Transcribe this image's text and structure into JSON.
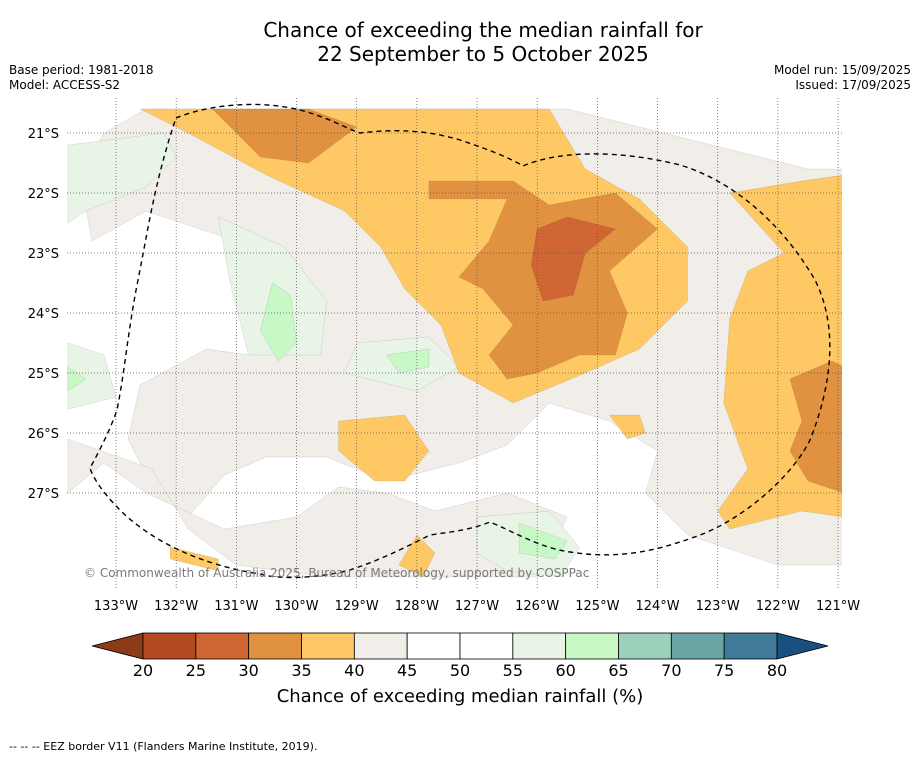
{
  "header": {
    "title_line1": "Chance of exceeding the median rainfall for",
    "title_line2": "22 September to 5 October 2025",
    "base_period": "Base period: 1981-2018",
    "model": "Model: ACCESS-S2",
    "model_run": "Model run: 15/09/2025",
    "issued": "Issued: 17/09/2025"
  },
  "copyright": "© Commonwealth of Australia 2025, Bureau of Meteorology, supported by COSPPac",
  "footer_note": "--  --  -- EEZ border V11 (Flanders Marine Institute, 2019).",
  "chart_data": {
    "type": "heatmap",
    "title": "Chance of exceeding the median rainfall for 22 September to 5 October 2025",
    "x_ticks": [
      "133°W",
      "132°W",
      "131°W",
      "130°W",
      "129°W",
      "128°W",
      "127°W",
      "126°W",
      "125°W",
      "124°W",
      "123°W",
      "122°W",
      "121°W"
    ],
    "y_ticks": [
      "21°S",
      "22°S",
      "23°S",
      "24°S",
      "25°S",
      "26°S",
      "27°S"
    ],
    "x_range": [
      -133.8,
      -120.9
    ],
    "y_range": [
      -28.4,
      -20.6
    ],
    "grid": true,
    "colorbar": {
      "label": "Chance of exceeding median rainfall (%)",
      "ticks": [
        "20",
        "25",
        "30",
        "35",
        "40",
        "45",
        "50",
        "55",
        "60",
        "65",
        "70",
        "75",
        "80"
      ],
      "colors": [
        "#8c3a1a",
        "#b34a22",
        "#cf6633",
        "#e09240",
        "#fec965",
        "#f1ede8",
        "#ffffff",
        "#ffffff",
        "#e8f4e6",
        "#c8f8c6",
        "#9dd0ba",
        "#6aa5a5",
        "#3f7b98",
        "#1a5080"
      ]
    },
    "regions": [
      {
        "category": "40-45",
        "color": "#f1ede8",
        "points": [
          [
            -132.5,
            -20.6
          ],
          [
            -125.5,
            -20.6
          ],
          [
            -123.5,
            -21.1
          ],
          [
            -121.5,
            -21.6
          ],
          [
            -120.9,
            -21.6
          ],
          [
            -120.9,
            -28.2
          ],
          [
            -122.0,
            -28.2
          ],
          [
            -123.5,
            -27.7
          ],
          [
            -124.2,
            -27.0
          ],
          [
            -124.0,
            -26.3
          ],
          [
            -124.8,
            -25.8
          ],
          [
            -125.8,
            -25.5
          ],
          [
            -126.5,
            -26.2
          ],
          [
            -127.3,
            -26.5
          ],
          [
            -128.5,
            -26.8
          ],
          [
            -129.5,
            -26.4
          ],
          [
            -130.5,
            -26.4
          ],
          [
            -131.2,
            -26.7
          ],
          [
            -131.8,
            -27.4
          ],
          [
            -132.4,
            -26.9
          ],
          [
            -132.8,
            -26.1
          ],
          [
            -132.6,
            -25.2
          ],
          [
            -131.5,
            -24.6
          ],
          [
            -130.8,
            -24.7
          ],
          [
            -130.5,
            -23.7
          ],
          [
            -131.0,
            -22.8
          ],
          [
            -132.5,
            -22.3
          ],
          [
            -133.4,
            -22.8
          ],
          [
            -133.6,
            -21.7
          ],
          [
            -133.2,
            -21.0
          ]
        ]
      },
      {
        "category": "40-45",
        "color": "#f1ede8",
        "points": [
          [
            -133.8,
            -26.1
          ],
          [
            -132.4,
            -26.6
          ],
          [
            -131.8,
            -27.6
          ],
          [
            -131.0,
            -28.2
          ],
          [
            -129.5,
            -28.4
          ],
          [
            -126.0,
            -28.4
          ],
          [
            -125.5,
            -27.4
          ],
          [
            -126.5,
            -27.0
          ],
          [
            -127.7,
            -27.3
          ],
          [
            -128.5,
            -27.0
          ],
          [
            -129.3,
            -26.9
          ],
          [
            -130.0,
            -27.4
          ],
          [
            -131.2,
            -27.6
          ],
          [
            -132.5,
            -27.0
          ],
          [
            -133.2,
            -26.5
          ],
          [
            -133.8,
            -27.0
          ]
        ]
      },
      {
        "category": "55-60",
        "color": "#e8f4e6",
        "points": [
          [
            -133.8,
            -21.2
          ],
          [
            -132.2,
            -21.0
          ],
          [
            -132.0,
            -21.4
          ],
          [
            -132.5,
            -21.9
          ],
          [
            -133.5,
            -22.3
          ],
          [
            -133.8,
            -22.5
          ]
        ]
      },
      {
        "category": "55-60",
        "color": "#e8f4e6",
        "points": [
          [
            -133.8,
            -24.5
          ],
          [
            -133.2,
            -24.7
          ],
          [
            -133.0,
            -25.4
          ],
          [
            -133.8,
            -25.6
          ]
        ]
      },
      {
        "category": "55-60",
        "color": "#e8f4e6",
        "points": [
          [
            -131.3,
            -22.4
          ],
          [
            -130.2,
            -22.9
          ],
          [
            -129.5,
            -23.8
          ],
          [
            -129.6,
            -24.7
          ],
          [
            -130.8,
            -24.7
          ],
          [
            -131.1,
            -23.5
          ]
        ]
      },
      {
        "category": "55-60",
        "color": "#e8f4e6",
        "points": [
          [
            -129.0,
            -24.5
          ],
          [
            -127.8,
            -24.4
          ],
          [
            -127.3,
            -24.9
          ],
          [
            -128.0,
            -25.3
          ],
          [
            -129.2,
            -25.0
          ]
        ]
      },
      {
        "category": "55-60",
        "color": "#e8f4e6",
        "points": [
          [
            -127.0,
            -27.4
          ],
          [
            -125.8,
            -27.3
          ],
          [
            -125.3,
            -27.9
          ],
          [
            -125.6,
            -28.4
          ],
          [
            -126.5,
            -28.3
          ],
          [
            -127.0,
            -28.0
          ]
        ]
      },
      {
        "category": "60-65",
        "color": "#c8f8c6",
        "points": [
          [
            -130.4,
            -23.5
          ],
          [
            -130.1,
            -23.7
          ],
          [
            -130.0,
            -24.5
          ],
          [
            -130.3,
            -24.8
          ],
          [
            -130.6,
            -24.3
          ]
        ]
      },
      {
        "category": "60-65",
        "color": "#c8f8c6",
        "points": [
          [
            -128.5,
            -24.7
          ],
          [
            -127.8,
            -24.6
          ],
          [
            -127.8,
            -24.9
          ],
          [
            -128.3,
            -25.0
          ]
        ]
      },
      {
        "category": "60-65",
        "color": "#c8f8c6",
        "points": [
          [
            -133.8,
            -24.9
          ],
          [
            -133.5,
            -25.1
          ],
          [
            -133.8,
            -25.3
          ]
        ]
      },
      {
        "category": "60-65",
        "color": "#c8f8c6",
        "points": [
          [
            -126.3,
            -27.5
          ],
          [
            -125.5,
            -27.8
          ],
          [
            -125.7,
            -28.1
          ],
          [
            -126.3,
            -28.0
          ]
        ]
      },
      {
        "category": "35-40",
        "color": "#fec965",
        "points": [
          [
            -132.6,
            -20.6
          ],
          [
            -125.8,
            -20.6
          ],
          [
            -125.2,
            -21.6
          ],
          [
            -124.3,
            -22.1
          ],
          [
            -123.5,
            -22.9
          ],
          [
            -123.5,
            -23.8
          ],
          [
            -124.3,
            -24.6
          ],
          [
            -125.2,
            -25.0
          ],
          [
            -126.4,
            -25.5
          ],
          [
            -127.3,
            -25.0
          ],
          [
            -127.6,
            -24.2
          ],
          [
            -128.2,
            -23.6
          ],
          [
            -128.6,
            -22.9
          ],
          [
            -129.2,
            -22.3
          ],
          [
            -130.5,
            -21.7
          ],
          [
            -131.8,
            -21.0
          ]
        ]
      },
      {
        "category": "35-40",
        "color": "#fec965",
        "points": [
          [
            -122.8,
            -22.0
          ],
          [
            -121.6,
            -21.8
          ],
          [
            -120.9,
            -21.7
          ],
          [
            -120.9,
            -27.4
          ],
          [
            -121.6,
            -27.3
          ],
          [
            -122.8,
            -27.6
          ],
          [
            -123.0,
            -27.3
          ],
          [
            -122.5,
            -26.6
          ],
          [
            -122.9,
            -25.5
          ],
          [
            -122.8,
            -24.1
          ],
          [
            -122.5,
            -23.3
          ],
          [
            -121.9,
            -23.0
          ]
        ]
      },
      {
        "category": "35-40",
        "color": "#fec965",
        "points": [
          [
            -129.3,
            -25.8
          ],
          [
            -128.2,
            -25.7
          ],
          [
            -127.8,
            -26.3
          ],
          [
            -128.2,
            -26.8
          ],
          [
            -128.7,
            -26.8
          ],
          [
            -129.3,
            -26.3
          ]
        ]
      },
      {
        "category": "35-40",
        "color": "#fec965",
        "points": [
          [
            -124.8,
            -25.7
          ],
          [
            -124.3,
            -25.7
          ],
          [
            -124.2,
            -26.0
          ],
          [
            -124.5,
            -26.1
          ]
        ]
      },
      {
        "category": "35-40",
        "color": "#fec965",
        "points": [
          [
            -132.1,
            -27.9
          ],
          [
            -131.3,
            -28.1
          ],
          [
            -131.3,
            -28.3
          ],
          [
            -132.1,
            -28.1
          ]
        ]
      },
      {
        "category": "35-40",
        "color": "#fec965",
        "points": [
          [
            -128.0,
            -27.7
          ],
          [
            -127.7,
            -28.0
          ],
          [
            -127.9,
            -28.4
          ],
          [
            -128.3,
            -28.2
          ]
        ]
      },
      {
        "category": "30-35",
        "color": "#e09240",
        "points": [
          [
            -131.4,
            -20.6
          ],
          [
            -129.8,
            -20.6
          ],
          [
            -129.0,
            -20.9
          ],
          [
            -129.8,
            -21.5
          ],
          [
            -130.6,
            -21.4
          ]
        ]
      },
      {
        "category": "30-35",
        "color": "#e09240",
        "points": [
          [
            -127.8,
            -21.8
          ],
          [
            -126.4,
            -21.8
          ],
          [
            -125.8,
            -22.2
          ],
          [
            -124.7,
            -22.0
          ],
          [
            -124.0,
            -22.6
          ],
          [
            -124.8,
            -23.3
          ],
          [
            -124.5,
            -24.0
          ],
          [
            -124.7,
            -24.7
          ],
          [
            -125.3,
            -24.7
          ],
          [
            -126.0,
            -25.0
          ],
          [
            -126.5,
            -25.1
          ],
          [
            -126.8,
            -24.7
          ],
          [
            -126.4,
            -24.2
          ],
          [
            -126.9,
            -23.6
          ],
          [
            -127.3,
            -23.4
          ],
          [
            -126.8,
            -22.8
          ],
          [
            -126.5,
            -22.1
          ],
          [
            -127.8,
            -22.1
          ]
        ]
      },
      {
        "category": "30-35",
        "color": "#e09240",
        "points": [
          [
            -121.8,
            -25.1
          ],
          [
            -121.1,
            -24.8
          ],
          [
            -120.9,
            -24.9
          ],
          [
            -120.9,
            -27.0
          ],
          [
            -121.5,
            -26.8
          ],
          [
            -121.8,
            -26.3
          ],
          [
            -121.6,
            -25.8
          ]
        ]
      },
      {
        "category": "25-30",
        "color": "#cf6633",
        "points": [
          [
            -125.5,
            -22.4
          ],
          [
            -124.7,
            -22.6
          ],
          [
            -125.2,
            -23.0
          ],
          [
            -125.4,
            -23.7
          ],
          [
            -125.9,
            -23.8
          ],
          [
            -126.1,
            -23.2
          ],
          [
            -126.0,
            -22.6
          ]
        ]
      }
    ]
  }
}
